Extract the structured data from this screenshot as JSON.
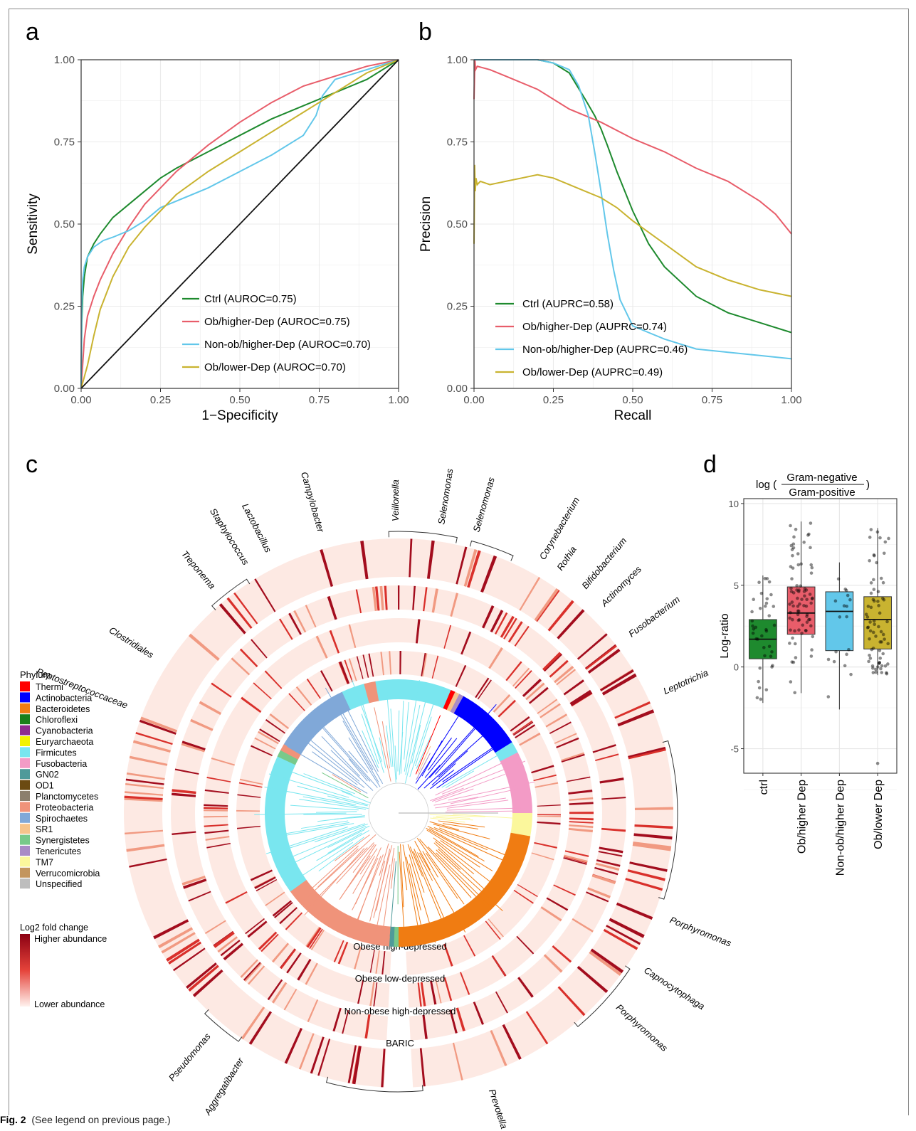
{
  "panels": {
    "a": "a",
    "b": "b",
    "c": "c",
    "d": "d"
  },
  "caption": {
    "label": "Fig. 2",
    "text": "(See legend on previous page.)"
  },
  "colors": {
    "ctrl": "#1e8a2e",
    "ob_higher": "#e85d6a",
    "nonob_higher": "#62c7ea",
    "ob_lower": "#c9b330"
  },
  "chart_data": [
    {
      "id": "a",
      "type": "line",
      "title": "",
      "xlabel": "1−Specificity",
      "ylabel": "Sensitivity",
      "xlim": [
        0,
        1
      ],
      "ylim": [
        0,
        1
      ],
      "xticks": [
        "0.00",
        "0.25",
        "0.50",
        "0.75",
        "1.00"
      ],
      "yticks": [
        "0.00",
        "0.25",
        "0.50",
        "0.75",
        "1.00"
      ],
      "grid": true,
      "legend_position": "bottom-right",
      "series": [
        {
          "name": "Ctrl (AUROC=0.75)",
          "key": "ctrl",
          "x": [
            0,
            0.002,
            0.005,
            0.01,
            0.02,
            0.04,
            0.06,
            0.1,
            0.15,
            0.2,
            0.25,
            0.3,
            0.4,
            0.5,
            0.6,
            0.7,
            0.8,
            0.9,
            1.0
          ],
          "y": [
            0,
            0.2,
            0.28,
            0.34,
            0.4,
            0.44,
            0.47,
            0.52,
            0.56,
            0.6,
            0.64,
            0.67,
            0.72,
            0.77,
            0.82,
            0.86,
            0.9,
            0.94,
            1.0
          ]
        },
        {
          "name": "Ob/higher-Dep (AUROC=0.75)",
          "key": "ob_higher",
          "x": [
            0,
            0.01,
            0.02,
            0.04,
            0.06,
            0.1,
            0.15,
            0.2,
            0.25,
            0.3,
            0.4,
            0.5,
            0.6,
            0.7,
            0.8,
            0.9,
            1.0
          ],
          "y": [
            0,
            0.15,
            0.22,
            0.28,
            0.33,
            0.41,
            0.49,
            0.56,
            0.61,
            0.66,
            0.74,
            0.81,
            0.87,
            0.92,
            0.95,
            0.98,
            1.0
          ]
        },
        {
          "name": "Non-ob/higher-Dep (AUROC=0.70)",
          "key": "nonob_higher",
          "x": [
            0,
            0.002,
            0.005,
            0.01,
            0.02,
            0.04,
            0.07,
            0.1,
            0.15,
            0.2,
            0.25,
            0.3,
            0.4,
            0.5,
            0.6,
            0.7,
            0.74,
            0.76,
            0.8,
            0.9,
            1.0
          ],
          "y": [
            0,
            0.26,
            0.33,
            0.37,
            0.4,
            0.43,
            0.45,
            0.46,
            0.48,
            0.51,
            0.55,
            0.57,
            0.61,
            0.66,
            0.71,
            0.77,
            0.83,
            0.89,
            0.94,
            0.97,
            1.0
          ]
        },
        {
          "name": "Ob/lower-Dep (AUROC=0.70)",
          "key": "ob_lower",
          "x": [
            0,
            0.02,
            0.04,
            0.06,
            0.1,
            0.15,
            0.2,
            0.25,
            0.3,
            0.4,
            0.5,
            0.6,
            0.7,
            0.8,
            0.9,
            1.0
          ],
          "y": [
            0,
            0.07,
            0.16,
            0.24,
            0.34,
            0.43,
            0.49,
            0.54,
            0.59,
            0.66,
            0.72,
            0.78,
            0.84,
            0.9,
            0.96,
            1.0
          ]
        },
        {
          "name": "",
          "key": "diag",
          "x": [
            0,
            1
          ],
          "y": [
            0,
            1
          ]
        }
      ]
    },
    {
      "id": "b",
      "type": "line",
      "title": "",
      "xlabel": "Recall",
      "ylabel": "Precision",
      "xlim": [
        0,
        1
      ],
      "ylim": [
        0,
        1
      ],
      "xticks": [
        "0.00",
        "0.25",
        "0.50",
        "0.75",
        "1.00"
      ],
      "yticks": [
        "0.00",
        "0.25",
        "0.50",
        "0.75",
        "1.00"
      ],
      "grid": true,
      "legend_position": "bottom-left",
      "series": [
        {
          "name": "Ctrl (AUPRC=0.58)",
          "key": "ctrl",
          "x": [
            0,
            0.01,
            0.1,
            0.2,
            0.25,
            0.3,
            0.35,
            0.38,
            0.4,
            0.42,
            0.45,
            0.5,
            0.55,
            0.6,
            0.7,
            0.8,
            0.9,
            1.0
          ],
          "y": [
            1.0,
            1.0,
            1.0,
            1.0,
            0.99,
            0.96,
            0.88,
            0.83,
            0.79,
            0.74,
            0.66,
            0.54,
            0.44,
            0.37,
            0.28,
            0.23,
            0.2,
            0.17
          ]
        },
        {
          "name": "Ob/higher-Dep (AUPRC=0.74)",
          "key": "ob_higher",
          "x": [
            0,
            0.003,
            0.005,
            0.01,
            0.05,
            0.1,
            0.2,
            0.3,
            0.4,
            0.5,
            0.6,
            0.7,
            0.8,
            0.9,
            0.95,
            1.0
          ],
          "y": [
            0.88,
            1.0,
            0.97,
            0.98,
            0.97,
            0.95,
            0.91,
            0.85,
            0.81,
            0.76,
            0.72,
            0.67,
            0.63,
            0.57,
            0.53,
            0.47
          ]
        },
        {
          "name": "Non-ob/higher-Dep (AUPRC=0.46)",
          "key": "nonob_higher",
          "x": [
            0,
            0.01,
            0.1,
            0.2,
            0.25,
            0.3,
            0.33,
            0.36,
            0.38,
            0.4,
            0.42,
            0.44,
            0.46,
            0.5,
            0.55,
            0.6,
            0.7,
            0.8,
            0.9,
            1.0
          ],
          "y": [
            1.0,
            1.0,
            1.0,
            1.0,
            0.99,
            0.97,
            0.92,
            0.83,
            0.72,
            0.6,
            0.47,
            0.36,
            0.27,
            0.19,
            0.17,
            0.15,
            0.12,
            0.11,
            0.1,
            0.09
          ]
        },
        {
          "name": "Ob/lower-Dep (AUPRC=0.49)",
          "key": "ob_lower",
          "x": [
            0,
            0.002,
            0.004,
            0.006,
            0.01,
            0.02,
            0.05,
            0.1,
            0.15,
            0.2,
            0.25,
            0.3,
            0.35,
            0.4,
            0.45,
            0.5,
            0.6,
            0.7,
            0.8,
            0.9,
            1.0
          ],
          "y": [
            0.44,
            0.68,
            0.6,
            0.64,
            0.62,
            0.63,
            0.62,
            0.63,
            0.64,
            0.65,
            0.64,
            0.62,
            0.6,
            0.58,
            0.55,
            0.51,
            0.44,
            0.37,
            0.33,
            0.3,
            0.28
          ]
        }
      ]
    },
    {
      "id": "c",
      "type": "heatmap",
      "title": "",
      "rings": [
        "Obese high-depressed",
        "Obese low-depressed",
        "Non-obese high-depressed",
        "BARIC"
      ],
      "taxa_labels": [
        "Treponema",
        "Staphylococcus",
        "Lactobacillus",
        "Campylobacter",
        "Veillonella",
        "Selenomonas",
        "Selenomonas",
        "Corynebacterium",
        "Rothia",
        "Bifidobacterium",
        "Actinomyces",
        "Fusobacterium",
        "Leptotrichia",
        "Porphyromonas",
        "Capnocytophaga",
        "Porphyromonas",
        "Prevotella",
        "Aggregatibacter",
        "Pseudomonas",
        "Peptostreptococcaceae",
        "Clostridiales"
      ],
      "phylum_legend": {
        "title": "Phylum",
        "items": [
          {
            "name": "Thermi",
            "color": "#ff0000"
          },
          {
            "name": "Actinobacteria",
            "color": "#0000ff"
          },
          {
            "name": "Bacteroidetes",
            "color": "#f07c12"
          },
          {
            "name": "Chloroflexi",
            "color": "#1a7f1a"
          },
          {
            "name": "Cyanobacteria",
            "color": "#8e2b8e"
          },
          {
            "name": "Euryarchaeota",
            "color": "#f2f200"
          },
          {
            "name": "Firmicutes",
            "color": "#79e6ef"
          },
          {
            "name": "Fusobacteria",
            "color": "#f39bc6"
          },
          {
            "name": "GN02",
            "color": "#4f9a9a"
          },
          {
            "name": "OD1",
            "color": "#6b4a12"
          },
          {
            "name": "Planctomycetes",
            "color": "#8c7f6d"
          },
          {
            "name": "Proteobacteria",
            "color": "#f0937a"
          },
          {
            "name": "Spirochaetes",
            "color": "#80a8d8"
          },
          {
            "name": "SR1",
            "color": "#f6c48c"
          },
          {
            "name": "Synergistetes",
            "color": "#78c98a"
          },
          {
            "name": "Tenericutes",
            "color": "#a98bc6"
          },
          {
            "name": "TM7",
            "color": "#fbf79c"
          },
          {
            "name": "Verrucomicrobia",
            "color": "#c3955e"
          },
          {
            "name": "Unspecified",
            "color": "#bdbdbd"
          }
        ]
      },
      "phylum_ring": [
        {
          "phylum": "Firmicutes",
          "start": 0,
          "end": 23
        },
        {
          "phylum": "Thermi",
          "start": 23,
          "end": 25
        },
        {
          "phylum": "SR1",
          "start": 25,
          "end": 27
        },
        {
          "phylum": "Tenericutes",
          "start": 27,
          "end": 29
        },
        {
          "phylum": "Actinobacteria",
          "start": 29,
          "end": 58
        },
        {
          "phylum": "Firmicutes",
          "start": 58,
          "end": 63
        },
        {
          "phylum": "Fusobacteria",
          "start": 63,
          "end": 90
        },
        {
          "phylum": "TM7",
          "start": 90,
          "end": 100
        },
        {
          "phylum": "Bacteroidetes",
          "start": 100,
          "end": 180
        },
        {
          "phylum": "Synergistetes",
          "start": 180,
          "end": 182
        },
        {
          "phylum": "GN02",
          "start": 182,
          "end": 184
        },
        {
          "phylum": "Proteobacteria",
          "start": 184,
          "end": 234
        },
        {
          "phylum": "Firmicutes",
          "start": 234,
          "end": 295
        },
        {
          "phylum": "Synergistetes",
          "start": 295,
          "end": 298
        },
        {
          "phylum": "Proteobacteria",
          "start": 298,
          "end": 301
        },
        {
          "phylum": "Spirochaetes",
          "start": 301,
          "end": 335
        },
        {
          "phylum": "Firmicutes",
          "start": 335,
          "end": 345
        },
        {
          "phylum": "Proteobacteria",
          "start": 345,
          "end": 350
        },
        {
          "phylum": "Firmicutes",
          "start": 350,
          "end": 360
        }
      ],
      "fold_legend": {
        "title": "Log2 fold change",
        "high": "Higher abundance",
        "low": "Lower abundance"
      }
    },
    {
      "id": "d",
      "type": "box",
      "title": "log(Gram-negative / Gram-positive)",
      "title_prefix": "log (",
      "title_numerator": "Gram-negative",
      "title_denominator": "Gram-positive",
      "title_suffix": ")",
      "xlabel": "",
      "ylabel": "Log-ratio",
      "ylim": [
        -6.5,
        10.3
      ],
      "yticks": [
        "10",
        "5",
        "0",
        "-5"
      ],
      "ytick_values": [
        10,
        5,
        0,
        -5
      ],
      "grid": true,
      "categories": [
        "ctrl",
        "Ob/higher Dep",
        "Non-ob/higher Dep",
        "Ob/lower Dep"
      ],
      "boxes": [
        {
          "key": "ctrl",
          "q1": 0.5,
          "median": 1.7,
          "q3": 2.9,
          "whisker_low": -2.2,
          "whisker_high": 5.6,
          "n": 38
        },
        {
          "key": "ob_higher",
          "q1": 2.0,
          "median": 3.3,
          "q3": 4.9,
          "whisker_low": -1.6,
          "whisker_high": 8.9,
          "n": 80
        },
        {
          "key": "nonob_higher",
          "q1": 1.0,
          "median": 3.4,
          "q3": 4.6,
          "whisker_low": -2.6,
          "whisker_high": 6.4,
          "n": 18
        },
        {
          "key": "ob_lower",
          "q1": 1.1,
          "median": 2.9,
          "q3": 4.3,
          "whisker_low": -0.5,
          "whisker_high": 8.5,
          "n": 70
        }
      ]
    }
  ]
}
